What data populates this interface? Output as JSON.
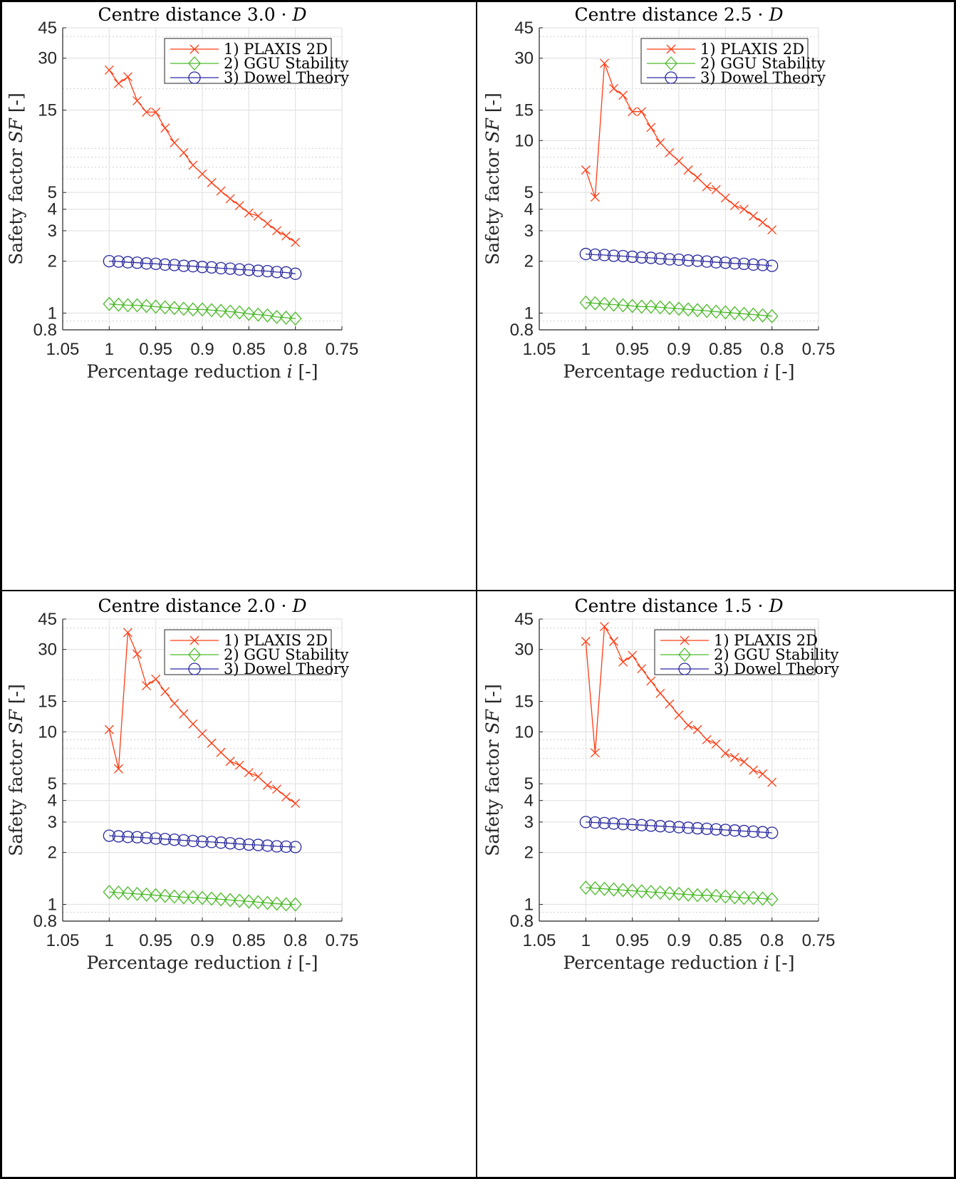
{
  "chart_data": [
    {
      "type": "line",
      "title": "Centre distance 3.0 · ",
      "title_var": "D",
      "xlabel": "Percentage reduction ",
      "xlabel_var": "i",
      "xlabel_unit": " [-]",
      "ylabel": "Safety factor ",
      "ylabel_var": "SF",
      "ylabel_unit": " [-]",
      "xlim": [
        1.05,
        0.75
      ],
      "x_reversed": true,
      "ylim": [
        0.8,
        45
      ],
      "yscale": "log",
      "grid": true,
      "xticks": [
        "1.05",
        "1",
        "0.95",
        "0.9",
        "0.85",
        "0.8",
        "0.75"
      ],
      "yticks": [
        "0.8",
        "1",
        "2",
        "3",
        "4",
        "5",
        "15",
        "30",
        "45"
      ],
      "legend_position": "top-right",
      "x": [
        1.0,
        0.99,
        0.98,
        0.97,
        0.96,
        0.95,
        0.94,
        0.93,
        0.92,
        0.91,
        0.9,
        0.89,
        0.88,
        0.87,
        0.86,
        0.85,
        0.84,
        0.83,
        0.82,
        0.81,
        0.8
      ],
      "series": [
        {
          "name": "1) PLAXIS 2D",
          "color": "#ff3c14",
          "marker": "x",
          "values": [
            25.6,
            21.4,
            23.4,
            17.0,
            14.6,
            14.6,
            11.8,
            9.7,
            8.5,
            7.2,
            6.4,
            5.7,
            5.1,
            4.6,
            4.2,
            3.8,
            3.65,
            3.3,
            3.0,
            2.8,
            2.57
          ]
        },
        {
          "name": "2) GGU Stability",
          "color": "#4cbb2a",
          "marker": "diamond",
          "values": [
            1.13,
            1.12,
            1.11,
            1.11,
            1.1,
            1.09,
            1.08,
            1.07,
            1.06,
            1.05,
            1.05,
            1.04,
            1.03,
            1.02,
            1.01,
            0.99,
            0.98,
            0.97,
            0.95,
            0.94,
            0.93
          ]
        },
        {
          "name": "3) Dowel Theory",
          "color": "#2a2aa0",
          "marker": "circle",
          "values": [
            2.0,
            1.99,
            1.97,
            1.96,
            1.94,
            1.93,
            1.91,
            1.9,
            1.88,
            1.87,
            1.85,
            1.84,
            1.82,
            1.81,
            1.79,
            1.78,
            1.76,
            1.75,
            1.73,
            1.72,
            1.69
          ]
        }
      ]
    },
    {
      "type": "line",
      "title": "Centre distance 2.5 · ",
      "title_var": "D",
      "xlabel": "Percentage reduction ",
      "xlabel_var": "i",
      "xlabel_unit": " [-]",
      "ylabel": "Safety factor ",
      "ylabel_var": "SF",
      "ylabel_unit": " [-]",
      "xlim": [
        1.05,
        0.75
      ],
      "x_reversed": true,
      "ylim": [
        0.8,
        45
      ],
      "yscale": "log",
      "grid": true,
      "xticks": [
        "1.05",
        "1",
        "0.95",
        "0.9",
        "0.85",
        "0.8",
        "0.75"
      ],
      "yticks": [
        "0.8",
        "1",
        "2",
        "3",
        "4",
        "5",
        "10",
        "15",
        "30",
        "45"
      ],
      "legend_position": "top-right",
      "x": [
        1.0,
        0.99,
        0.98,
        0.97,
        0.96,
        0.95,
        0.94,
        0.93,
        0.92,
        0.91,
        0.9,
        0.89,
        0.88,
        0.87,
        0.86,
        0.85,
        0.84,
        0.83,
        0.82,
        0.81,
        0.8
      ],
      "series": [
        {
          "name": "1) PLAXIS 2D",
          "color": "#ff3c14",
          "marker": "x",
          "values": [
            6.75,
            4.7,
            28.0,
            20.0,
            18.3,
            14.7,
            14.7,
            11.9,
            9.7,
            8.5,
            7.6,
            6.75,
            6.1,
            5.4,
            5.2,
            4.65,
            4.2,
            4.0,
            3.65,
            3.35,
            3.04
          ]
        },
        {
          "name": "2) GGU Stability",
          "color": "#4cbb2a",
          "marker": "diamond",
          "values": [
            1.15,
            1.14,
            1.13,
            1.12,
            1.11,
            1.1,
            1.09,
            1.09,
            1.08,
            1.07,
            1.06,
            1.05,
            1.04,
            1.03,
            1.02,
            1.01,
            1.0,
            0.99,
            0.98,
            0.97,
            0.96
          ]
        },
        {
          "name": "3) Dowel Theory",
          "color": "#2a2aa0",
          "marker": "circle",
          "values": [
            2.2,
            2.18,
            2.17,
            2.15,
            2.14,
            2.12,
            2.1,
            2.09,
            2.07,
            2.05,
            2.04,
            2.02,
            2.01,
            1.99,
            1.97,
            1.96,
            1.94,
            1.93,
            1.91,
            1.9,
            1.88
          ]
        }
      ]
    },
    {
      "type": "line",
      "title": "Centre distance 2.0 · ",
      "title_var": "D",
      "xlabel": "Percentage reduction ",
      "xlabel_var": "i",
      "xlabel_unit": " [-]",
      "ylabel": "Safety factor ",
      "ylabel_var": "SF",
      "ylabel_unit": " [-]",
      "xlim": [
        1.05,
        0.75
      ],
      "x_reversed": true,
      "ylim": [
        0.8,
        45
      ],
      "yscale": "log",
      "grid": true,
      "xticks": [
        "1.05",
        "1",
        "0.95",
        "0.9",
        "0.85",
        "0.8",
        "0.75"
      ],
      "yticks": [
        "0.8",
        "1",
        "2",
        "3",
        "4",
        "5",
        "10",
        "15",
        "30",
        "45"
      ],
      "legend_position": "top-right",
      "x": [
        1.0,
        0.99,
        0.98,
        0.97,
        0.96,
        0.95,
        0.94,
        0.93,
        0.92,
        0.91,
        0.9,
        0.89,
        0.88,
        0.87,
        0.86,
        0.85,
        0.84,
        0.83,
        0.82,
        0.81,
        0.8
      ],
      "series": [
        {
          "name": "1) PLAXIS 2D",
          "color": "#ff3c14",
          "marker": "x",
          "values": [
            10.3,
            6.1,
            37.6,
            28.2,
            18.5,
            20.2,
            17.1,
            14.6,
            12.7,
            11.1,
            9.75,
            8.6,
            7.6,
            6.75,
            6.4,
            5.8,
            5.5,
            4.9,
            4.65,
            4.2,
            3.85
          ]
        },
        {
          "name": "2) GGU Stability",
          "color": "#4cbb2a",
          "marker": "diamond",
          "values": [
            1.18,
            1.17,
            1.16,
            1.15,
            1.14,
            1.13,
            1.12,
            1.11,
            1.1,
            1.1,
            1.09,
            1.08,
            1.07,
            1.06,
            1.05,
            1.04,
            1.03,
            1.02,
            1.01,
            1.0,
            1.0
          ]
        },
        {
          "name": "3) Dowel Theory",
          "color": "#2a2aa0",
          "marker": "circle",
          "values": [
            2.5,
            2.48,
            2.46,
            2.45,
            2.43,
            2.41,
            2.39,
            2.37,
            2.35,
            2.33,
            2.31,
            2.3,
            2.28,
            2.26,
            2.24,
            2.22,
            2.21,
            2.19,
            2.17,
            2.16,
            2.15
          ]
        }
      ]
    },
    {
      "type": "line",
      "title": "Centre distance 1.5 · ",
      "title_var": "D",
      "xlabel": "Percentage reduction ",
      "xlabel_var": "i",
      "xlabel_unit": " [-]",
      "ylabel": "Safety factor ",
      "ylabel_var": "SF",
      "ylabel_unit": " [-]",
      "xlim": [
        1.05,
        0.75
      ],
      "x_reversed": true,
      "ylim": [
        0.8,
        45
      ],
      "yscale": "log",
      "grid": true,
      "xticks": [
        "1.05",
        "1",
        "0.95",
        "0.9",
        "0.85",
        "0.8",
        "0.75"
      ],
      "yticks": [
        "0.8",
        "1",
        "2",
        "3",
        "4",
        "5",
        "10",
        "15",
        "30",
        "45"
      ],
      "legend_position": "top-right",
      "x": [
        1.0,
        0.99,
        0.98,
        0.97,
        0.96,
        0.95,
        0.94,
        0.93,
        0.92,
        0.91,
        0.9,
        0.89,
        0.88,
        0.87,
        0.86,
        0.85,
        0.84,
        0.83,
        0.82,
        0.81,
        0.8
      ],
      "series": [
        {
          "name": "1) PLAXIS 2D",
          "color": "#ff3c14",
          "marker": "x",
          "values": [
            33.4,
            7.55,
            40.7,
            33.4,
            25.4,
            27.7,
            23.2,
            19.7,
            16.7,
            14.5,
            12.5,
            10.9,
            10.3,
            9.0,
            8.5,
            7.5,
            7.1,
            6.7,
            6.0,
            5.7,
            5.1
          ]
        },
        {
          "name": "2) GGU Stability",
          "color": "#4cbb2a",
          "marker": "diamond",
          "values": [
            1.25,
            1.24,
            1.23,
            1.22,
            1.21,
            1.2,
            1.19,
            1.18,
            1.17,
            1.16,
            1.15,
            1.14,
            1.13,
            1.13,
            1.12,
            1.11,
            1.1,
            1.09,
            1.09,
            1.08,
            1.07
          ]
        },
        {
          "name": "3) Dowel Theory",
          "color": "#2a2aa0",
          "marker": "circle",
          "values": [
            3.0,
            2.98,
            2.96,
            2.94,
            2.92,
            2.9,
            2.88,
            2.86,
            2.84,
            2.82,
            2.8,
            2.78,
            2.76,
            2.74,
            2.72,
            2.7,
            2.68,
            2.66,
            2.64,
            2.62,
            2.6
          ]
        }
      ]
    }
  ]
}
